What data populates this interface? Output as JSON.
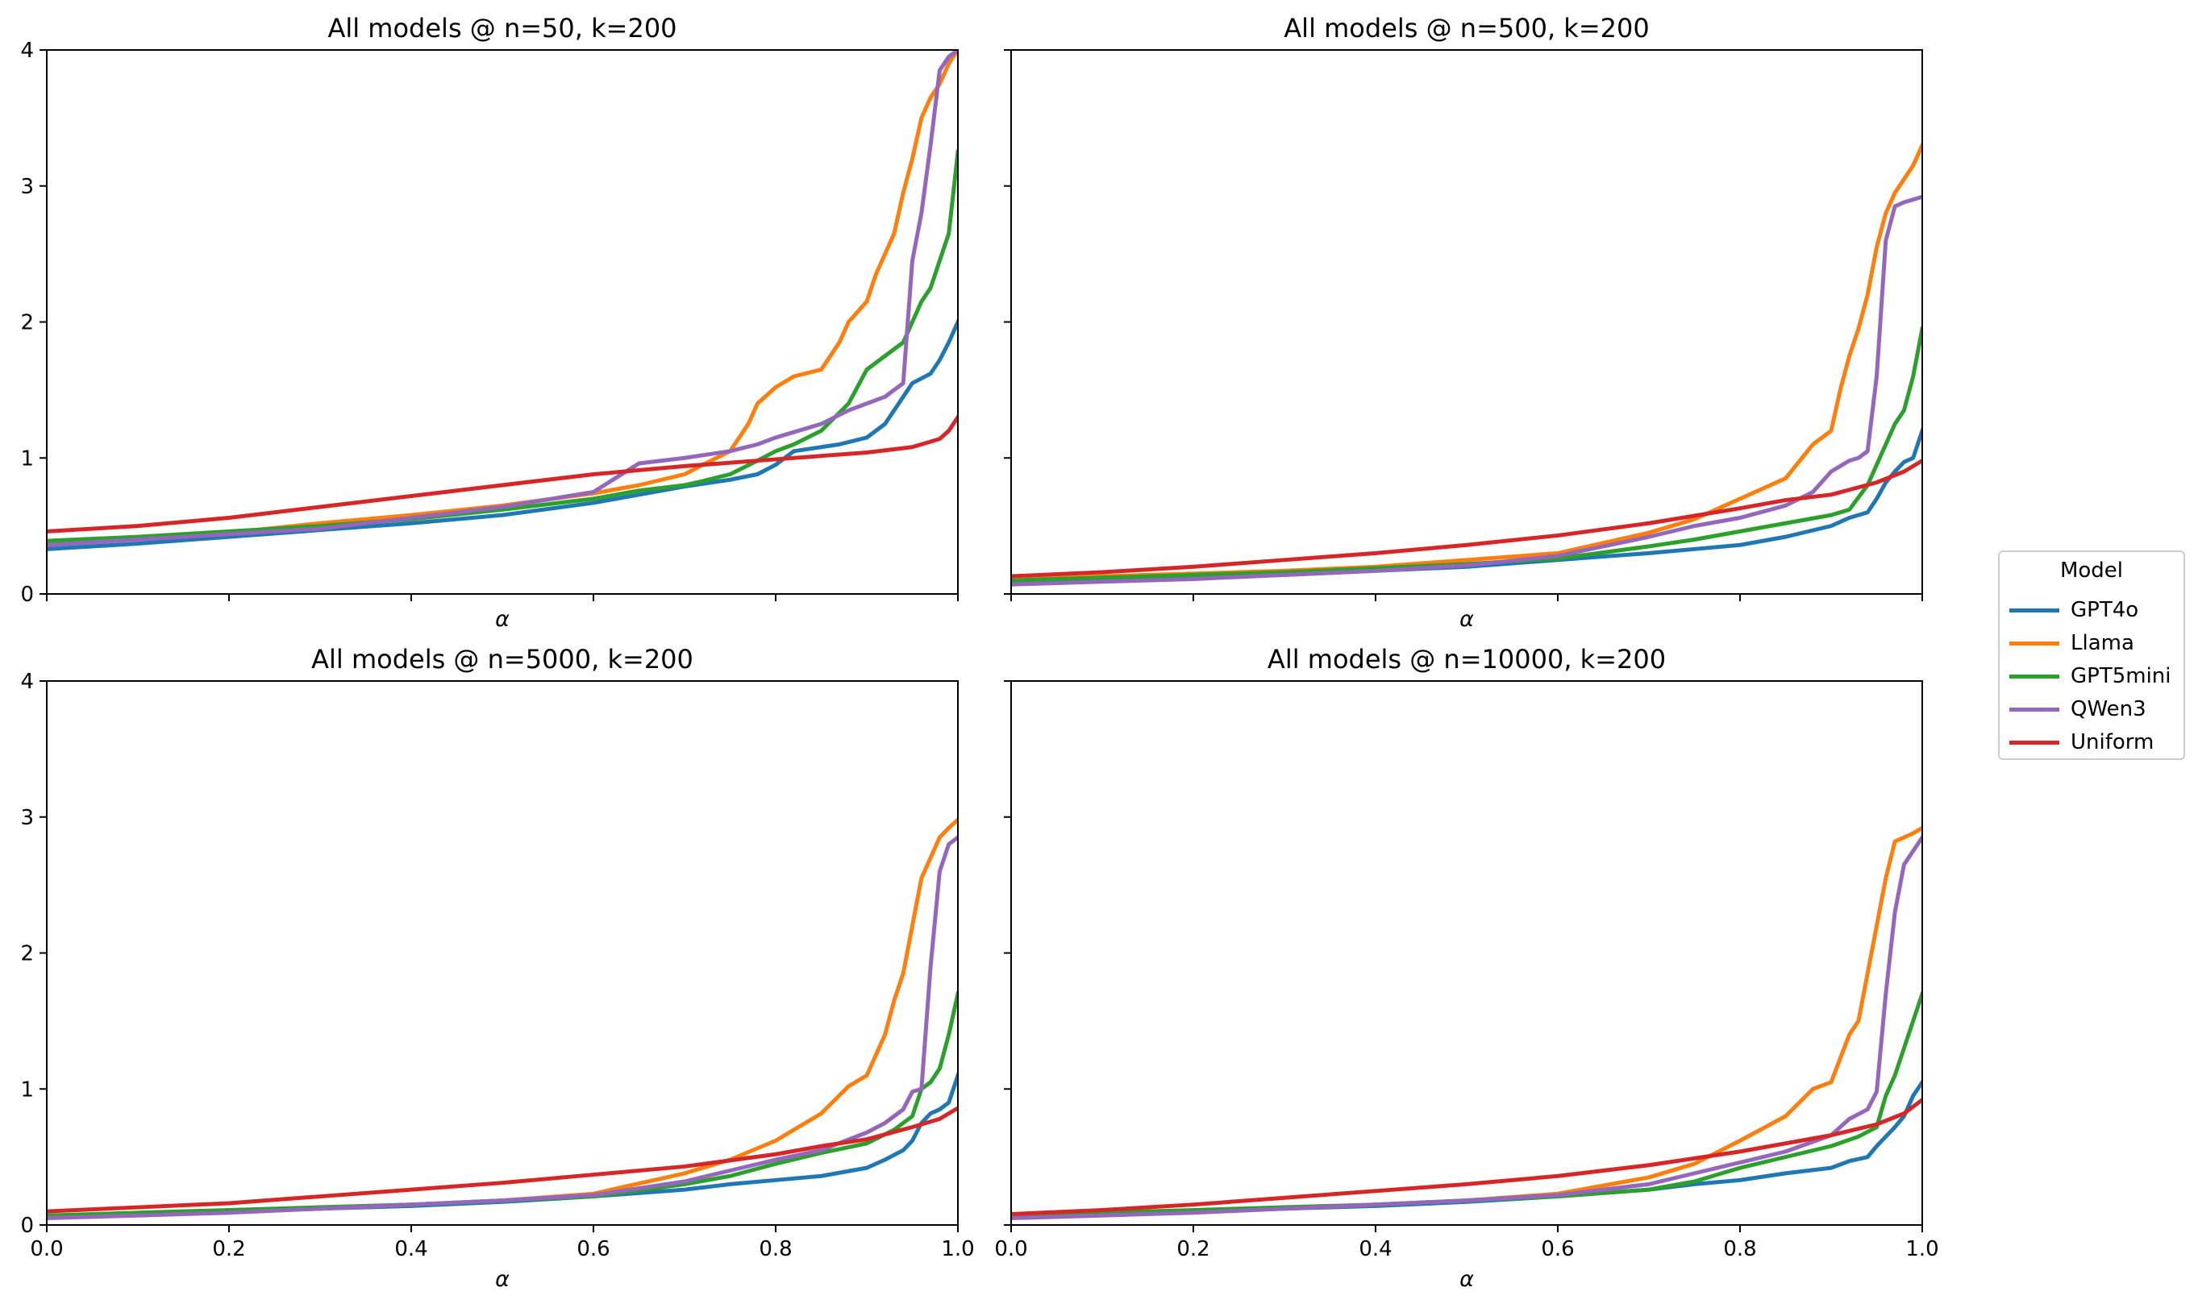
{
  "legend": {
    "title": "Model",
    "entries": [
      {
        "name": "GPT4o",
        "color": "#1f77b4"
      },
      {
        "name": "Llama",
        "color": "#ff7f0e"
      },
      {
        "name": "GPT5mini",
        "color": "#2ca02c"
      },
      {
        "name": "QWen3",
        "color": "#9467bd"
      },
      {
        "name": "Uniform",
        "color": "#d62728"
      }
    ]
  },
  "chart_data": [
    {
      "type": "line",
      "title": "All models @ n=50, k=200",
      "xlabel": "α",
      "ylabel": "",
      "xlim": [
        0,
        1
      ],
      "ylim": [
        0,
        4
      ],
      "show_xticklabels": false,
      "show_yticklabels": true,
      "xticks": [
        0.0,
        0.2,
        0.4,
        0.6,
        0.8,
        1.0
      ],
      "xtick_labels": [
        "0.0",
        "0.2",
        "0.4",
        "0.6",
        "0.8",
        "1.0"
      ],
      "yticks": [
        0,
        1,
        2,
        3,
        4
      ],
      "ytick_labels": [
        "0",
        "1",
        "2",
        "3",
        "4"
      ],
      "series": [
        {
          "name": "GPT4o",
          "x": [
            0,
            0.1,
            0.2,
            0.3,
            0.4,
            0.5,
            0.6,
            0.65,
            0.7,
            0.75,
            0.78,
            0.8,
            0.82,
            0.85,
            0.87,
            0.9,
            0.92,
            0.94,
            0.95,
            0.97,
            0.98,
            0.99,
            1.0
          ],
          "y": [
            0.33,
            0.37,
            0.42,
            0.47,
            0.52,
            0.58,
            0.67,
            0.73,
            0.79,
            0.84,
            0.88,
            0.95,
            1.05,
            1.08,
            1.1,
            1.15,
            1.25,
            1.45,
            1.55,
            1.62,
            1.72,
            1.85,
            2.0
          ]
        },
        {
          "name": "Llama",
          "x": [
            0,
            0.1,
            0.2,
            0.3,
            0.4,
            0.5,
            0.6,
            0.65,
            0.7,
            0.72,
            0.75,
            0.77,
            0.78,
            0.8,
            0.82,
            0.85,
            0.87,
            0.88,
            0.9,
            0.91,
            0.92,
            0.93,
            0.94,
            0.95,
            0.96,
            0.97,
            0.98,
            0.99,
            1.0
          ],
          "y": [
            0.37,
            0.41,
            0.45,
            0.52,
            0.58,
            0.65,
            0.74,
            0.8,
            0.88,
            0.95,
            1.05,
            1.25,
            1.4,
            1.52,
            1.6,
            1.65,
            1.85,
            2.0,
            2.15,
            2.35,
            2.5,
            2.65,
            2.95,
            3.2,
            3.5,
            3.65,
            3.75,
            3.9,
            4.0
          ]
        },
        {
          "name": "GPT5mini",
          "x": [
            0,
            0.1,
            0.2,
            0.3,
            0.4,
            0.5,
            0.6,
            0.65,
            0.7,
            0.72,
            0.75,
            0.78,
            0.8,
            0.82,
            0.85,
            0.88,
            0.9,
            0.92,
            0.94,
            0.95,
            0.96,
            0.97,
            0.98,
            0.99,
            1.0
          ],
          "y": [
            0.39,
            0.42,
            0.46,
            0.5,
            0.55,
            0.62,
            0.7,
            0.76,
            0.8,
            0.83,
            0.88,
            0.98,
            1.05,
            1.1,
            1.2,
            1.4,
            1.65,
            1.75,
            1.85,
            2.0,
            2.15,
            2.25,
            2.45,
            2.65,
            3.25
          ]
        },
        {
          "name": "QWen3",
          "x": [
            0,
            0.1,
            0.2,
            0.3,
            0.4,
            0.5,
            0.6,
            0.65,
            0.7,
            0.75,
            0.78,
            0.8,
            0.85,
            0.88,
            0.9,
            0.92,
            0.94,
            0.95,
            0.96,
            0.97,
            0.98,
            0.99,
            1.0
          ],
          "y": [
            0.36,
            0.4,
            0.44,
            0.48,
            0.56,
            0.64,
            0.75,
            0.96,
            1.0,
            1.05,
            1.1,
            1.15,
            1.25,
            1.35,
            1.4,
            1.45,
            1.55,
            2.45,
            2.8,
            3.3,
            3.85,
            3.95,
            4.0
          ]
        },
        {
          "name": "Uniform",
          "x": [
            0,
            0.1,
            0.2,
            0.3,
            0.4,
            0.5,
            0.6,
            0.7,
            0.8,
            0.9,
            0.95,
            0.98,
            0.99,
            1.0
          ],
          "y": [
            0.46,
            0.5,
            0.56,
            0.64,
            0.72,
            0.8,
            0.88,
            0.94,
            0.99,
            1.04,
            1.08,
            1.14,
            1.2,
            1.3
          ]
        }
      ]
    },
    {
      "type": "line",
      "title": "All models @ n=500, k=200",
      "xlabel": "α",
      "ylabel": "",
      "xlim": [
        0,
        1
      ],
      "ylim": [
        0,
        4
      ],
      "show_xticklabels": false,
      "show_yticklabels": false,
      "xticks": [
        0.0,
        0.2,
        0.4,
        0.6,
        0.8,
        1.0
      ],
      "xtick_labels": [
        "0.0",
        "0.2",
        "0.4",
        "0.6",
        "0.8",
        "1.0"
      ],
      "yticks": [
        0,
        1,
        2,
        3,
        4
      ],
      "ytick_labels": [
        "0",
        "1",
        "2",
        "3",
        "4"
      ],
      "series": [
        {
          "name": "GPT4o",
          "x": [
            0,
            0.1,
            0.2,
            0.3,
            0.4,
            0.5,
            0.6,
            0.7,
            0.75,
            0.8,
            0.85,
            0.9,
            0.92,
            0.94,
            0.95,
            0.96,
            0.97,
            0.98,
            0.99,
            1.0
          ],
          "y": [
            0.08,
            0.1,
            0.12,
            0.14,
            0.17,
            0.2,
            0.25,
            0.3,
            0.33,
            0.36,
            0.42,
            0.5,
            0.56,
            0.6,
            0.7,
            0.82,
            0.9,
            0.97,
            1.0,
            1.2
          ]
        },
        {
          "name": "Llama",
          "x": [
            0,
            0.1,
            0.2,
            0.3,
            0.4,
            0.5,
            0.6,
            0.7,
            0.75,
            0.8,
            0.85,
            0.88,
            0.9,
            0.91,
            0.92,
            0.93,
            0.94,
            0.95,
            0.96,
            0.97,
            0.98,
            0.99,
            1.0
          ],
          "y": [
            0.1,
            0.13,
            0.15,
            0.17,
            0.2,
            0.25,
            0.3,
            0.45,
            0.55,
            0.7,
            0.85,
            1.1,
            1.2,
            1.5,
            1.75,
            1.95,
            2.2,
            2.55,
            2.8,
            2.95,
            3.05,
            3.15,
            3.3
          ]
        },
        {
          "name": "GPT5mini",
          "x": [
            0,
            0.1,
            0.2,
            0.3,
            0.4,
            0.5,
            0.6,
            0.7,
            0.75,
            0.8,
            0.85,
            0.9,
            0.92,
            0.94,
            0.95,
            0.96,
            0.97,
            0.98,
            0.99,
            1.0
          ],
          "y": [
            0.1,
            0.12,
            0.14,
            0.16,
            0.19,
            0.22,
            0.26,
            0.35,
            0.4,
            0.46,
            0.52,
            0.58,
            0.62,
            0.8,
            0.95,
            1.1,
            1.25,
            1.35,
            1.6,
            1.95
          ]
        },
        {
          "name": "QWen3",
          "x": [
            0,
            0.1,
            0.2,
            0.3,
            0.4,
            0.5,
            0.6,
            0.65,
            0.7,
            0.75,
            0.8,
            0.85,
            0.88,
            0.9,
            0.92,
            0.93,
            0.94,
            0.95,
            0.96,
            0.97,
            0.98,
            0.99,
            1.0
          ],
          "y": [
            0.07,
            0.09,
            0.11,
            0.14,
            0.17,
            0.21,
            0.28,
            0.35,
            0.42,
            0.5,
            0.56,
            0.65,
            0.75,
            0.9,
            0.98,
            1.0,
            1.05,
            1.6,
            2.6,
            2.85,
            2.88,
            2.9,
            2.92
          ]
        },
        {
          "name": "Uniform",
          "x": [
            0,
            0.1,
            0.2,
            0.3,
            0.4,
            0.5,
            0.6,
            0.7,
            0.8,
            0.85,
            0.9,
            0.95,
            0.98,
            1.0
          ],
          "y": [
            0.13,
            0.16,
            0.2,
            0.25,
            0.3,
            0.36,
            0.43,
            0.52,
            0.63,
            0.69,
            0.73,
            0.82,
            0.9,
            0.98
          ]
        }
      ]
    },
    {
      "type": "line",
      "title": "All models @ n=5000, k=200",
      "xlabel": "α",
      "ylabel": "",
      "xlim": [
        0,
        1
      ],
      "ylim": [
        0,
        4
      ],
      "show_xticklabels": true,
      "show_yticklabels": true,
      "xticks": [
        0.0,
        0.2,
        0.4,
        0.6,
        0.8,
        1.0
      ],
      "xtick_labels": [
        "0.0",
        "0.2",
        "0.4",
        "0.6",
        "0.8",
        "1.0"
      ],
      "yticks": [
        0,
        1,
        2,
        3,
        4
      ],
      "ytick_labels": [
        "0",
        "1",
        "2",
        "3",
        "4"
      ],
      "series": [
        {
          "name": "GPT4o",
          "x": [
            0,
            0.1,
            0.2,
            0.3,
            0.4,
            0.5,
            0.6,
            0.7,
            0.75,
            0.8,
            0.85,
            0.9,
            0.92,
            0.94,
            0.95,
            0.96,
            0.97,
            0.98,
            0.99,
            1.0
          ],
          "y": [
            0.06,
            0.08,
            0.1,
            0.12,
            0.14,
            0.17,
            0.21,
            0.26,
            0.3,
            0.33,
            0.36,
            0.42,
            0.48,
            0.55,
            0.62,
            0.75,
            0.82,
            0.85,
            0.9,
            1.1
          ]
        },
        {
          "name": "Llama",
          "x": [
            0,
            0.1,
            0.2,
            0.3,
            0.4,
            0.5,
            0.6,
            0.7,
            0.75,
            0.8,
            0.85,
            0.88,
            0.9,
            0.92,
            0.93,
            0.94,
            0.95,
            0.96,
            0.97,
            0.98,
            0.99,
            1.0
          ],
          "y": [
            0.06,
            0.08,
            0.1,
            0.12,
            0.15,
            0.18,
            0.23,
            0.38,
            0.48,
            0.62,
            0.82,
            1.02,
            1.1,
            1.4,
            1.65,
            1.85,
            2.2,
            2.55,
            2.7,
            2.85,
            2.92,
            2.98
          ]
        },
        {
          "name": "GPT5mini",
          "x": [
            0,
            0.1,
            0.2,
            0.3,
            0.4,
            0.5,
            0.6,
            0.7,
            0.75,
            0.8,
            0.85,
            0.9,
            0.93,
            0.95,
            0.96,
            0.97,
            0.98,
            0.99,
            1.0
          ],
          "y": [
            0.07,
            0.09,
            0.11,
            0.13,
            0.15,
            0.18,
            0.21,
            0.3,
            0.36,
            0.45,
            0.53,
            0.6,
            0.7,
            0.8,
            1.0,
            1.05,
            1.15,
            1.4,
            1.7
          ]
        },
        {
          "name": "QWen3",
          "x": [
            0,
            0.1,
            0.2,
            0.3,
            0.4,
            0.5,
            0.6,
            0.7,
            0.75,
            0.8,
            0.85,
            0.9,
            0.92,
            0.94,
            0.95,
            0.96,
            0.97,
            0.98,
            0.99,
            1.0
          ],
          "y": [
            0.05,
            0.07,
            0.09,
            0.12,
            0.15,
            0.18,
            0.22,
            0.32,
            0.4,
            0.48,
            0.55,
            0.68,
            0.75,
            0.85,
            0.98,
            1.0,
            1.9,
            2.6,
            2.8,
            2.85
          ]
        },
        {
          "name": "Uniform",
          "x": [
            0,
            0.1,
            0.2,
            0.3,
            0.4,
            0.5,
            0.6,
            0.7,
            0.8,
            0.85,
            0.9,
            0.95,
            0.98,
            1.0
          ],
          "y": [
            0.1,
            0.13,
            0.16,
            0.21,
            0.26,
            0.31,
            0.37,
            0.43,
            0.52,
            0.58,
            0.63,
            0.72,
            0.78,
            0.86
          ]
        }
      ]
    },
    {
      "type": "line",
      "title": "All models @ n=10000, k=200",
      "xlabel": "α",
      "ylabel": "",
      "xlim": [
        0,
        1
      ],
      "ylim": [
        0,
        4
      ],
      "show_xticklabels": true,
      "show_yticklabels": false,
      "xticks": [
        0.0,
        0.2,
        0.4,
        0.6,
        0.8,
        1.0
      ],
      "xtick_labels": [
        "0.0",
        "0.2",
        "0.4",
        "0.6",
        "0.8",
        "1.0"
      ],
      "yticks": [
        0,
        1,
        2,
        3,
        4
      ],
      "ytick_labels": [
        "0",
        "1",
        "2",
        "3",
        "4"
      ],
      "series": [
        {
          "name": "GPT4o",
          "x": [
            0,
            0.1,
            0.2,
            0.3,
            0.4,
            0.5,
            0.6,
            0.7,
            0.75,
            0.8,
            0.85,
            0.9,
            0.92,
            0.94,
            0.95,
            0.96,
            0.97,
            0.98,
            0.99,
            1.0
          ],
          "y": [
            0.06,
            0.08,
            0.1,
            0.12,
            0.14,
            0.17,
            0.21,
            0.26,
            0.3,
            0.33,
            0.38,
            0.42,
            0.47,
            0.5,
            0.58,
            0.65,
            0.72,
            0.8,
            0.95,
            1.05
          ]
        },
        {
          "name": "Llama",
          "x": [
            0,
            0.1,
            0.2,
            0.3,
            0.4,
            0.5,
            0.6,
            0.7,
            0.75,
            0.8,
            0.85,
            0.88,
            0.9,
            0.92,
            0.93,
            0.94,
            0.95,
            0.96,
            0.97,
            0.98,
            0.99,
            1.0
          ],
          "y": [
            0.06,
            0.08,
            0.1,
            0.12,
            0.15,
            0.18,
            0.23,
            0.35,
            0.45,
            0.62,
            0.8,
            1.0,
            1.05,
            1.4,
            1.5,
            1.85,
            2.2,
            2.55,
            2.82,
            2.85,
            2.88,
            2.92
          ]
        },
        {
          "name": "GPT5mini",
          "x": [
            0,
            0.1,
            0.2,
            0.3,
            0.4,
            0.5,
            0.6,
            0.7,
            0.75,
            0.8,
            0.85,
            0.9,
            0.93,
            0.95,
            0.96,
            0.97,
            0.98,
            0.99,
            1.0
          ],
          "y": [
            0.07,
            0.09,
            0.11,
            0.13,
            0.15,
            0.18,
            0.21,
            0.26,
            0.32,
            0.42,
            0.5,
            0.58,
            0.65,
            0.72,
            0.95,
            1.1,
            1.3,
            1.5,
            1.7
          ]
        },
        {
          "name": "QWen3",
          "x": [
            0,
            0.1,
            0.2,
            0.3,
            0.4,
            0.5,
            0.6,
            0.7,
            0.75,
            0.8,
            0.85,
            0.9,
            0.92,
            0.94,
            0.95,
            0.96,
            0.97,
            0.98,
            0.99,
            1.0
          ],
          "y": [
            0.05,
            0.07,
            0.09,
            0.12,
            0.15,
            0.18,
            0.22,
            0.3,
            0.38,
            0.46,
            0.54,
            0.66,
            0.78,
            0.85,
            0.98,
            1.7,
            2.3,
            2.65,
            2.75,
            2.85
          ]
        },
        {
          "name": "Uniform",
          "x": [
            0,
            0.1,
            0.2,
            0.3,
            0.4,
            0.5,
            0.6,
            0.7,
            0.8,
            0.85,
            0.9,
            0.95,
            0.98,
            1.0
          ],
          "y": [
            0.08,
            0.11,
            0.15,
            0.2,
            0.25,
            0.3,
            0.36,
            0.44,
            0.54,
            0.6,
            0.66,
            0.74,
            0.82,
            0.92
          ]
        }
      ]
    }
  ]
}
